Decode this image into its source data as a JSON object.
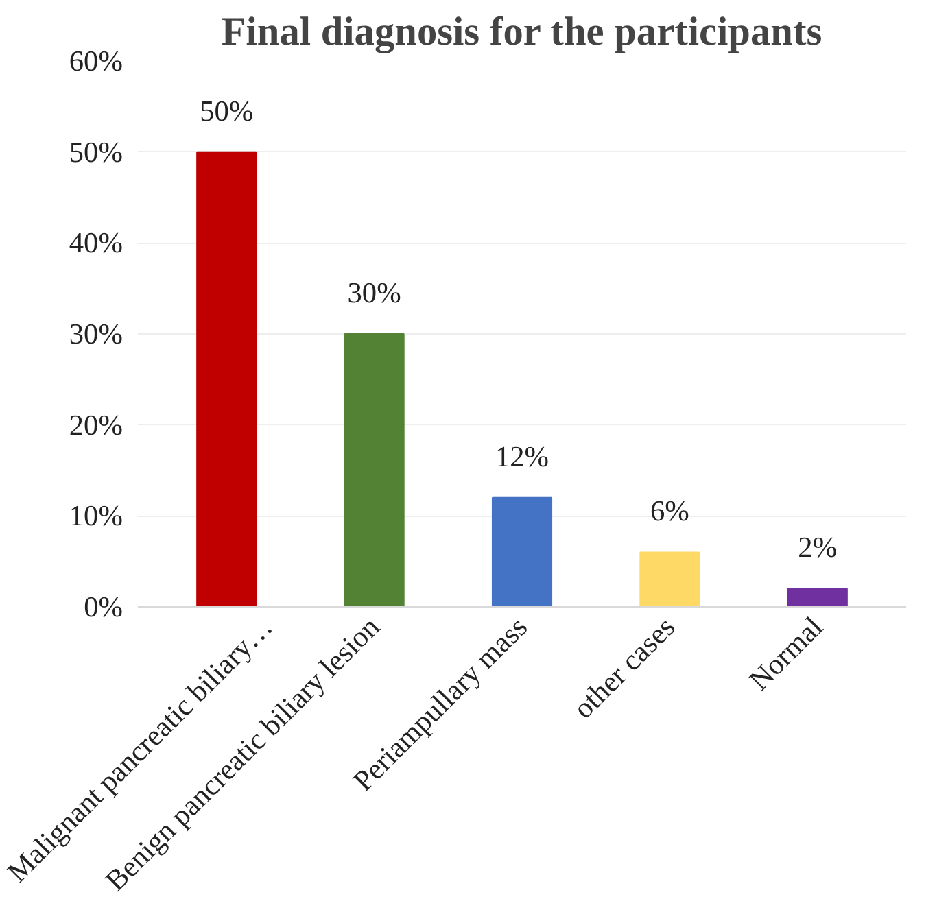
{
  "chart_data": {
    "type": "bar",
    "title": "Final diagnosis for the participants",
    "categories": [
      "Malignant pancreatic biliary…",
      "Benign pancreatic biliary lesion",
      "Periampullary mass",
      "other cases",
      "Normal"
    ],
    "values": [
      50,
      30,
      12,
      6,
      2
    ],
    "colors": [
      "#c00000",
      "#548235",
      "#4472c4",
      "#ffd966",
      "#7030a0"
    ],
    "value_labels": [
      "50%",
      "30%",
      "12%",
      "6%",
      "2%"
    ],
    "ylim": [
      0,
      60
    ],
    "yticks": [
      {
        "value": 0,
        "label": "0%"
      },
      {
        "value": 10,
        "label": "10%"
      },
      {
        "value": 20,
        "label": "20%"
      },
      {
        "value": 30,
        "label": "30%"
      },
      {
        "value": 40,
        "label": "40%"
      },
      {
        "value": 50,
        "label": "50%"
      },
      {
        "value": 60,
        "label": "60%"
      }
    ],
    "grid": "y"
  }
}
